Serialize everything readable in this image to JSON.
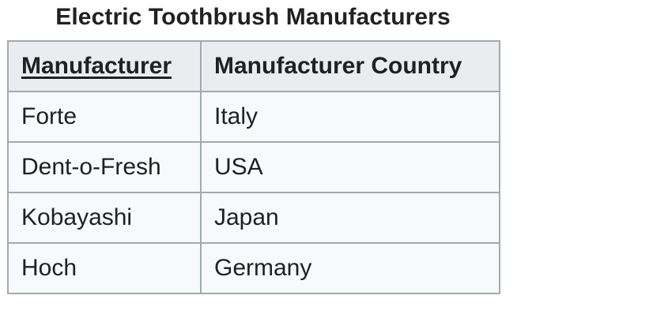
{
  "table": {
    "caption": "Electric Toothbrush Manufacturers",
    "headers": [
      "Manufacturer",
      "Manufacturer Country"
    ],
    "rows": [
      [
        "Forte",
        "Italy"
      ],
      [
        "Dent-o-Fresh",
        "USA"
      ],
      [
        "Kobayashi",
        "Japan"
      ],
      [
        "Hoch",
        "Germany"
      ]
    ]
  }
}
